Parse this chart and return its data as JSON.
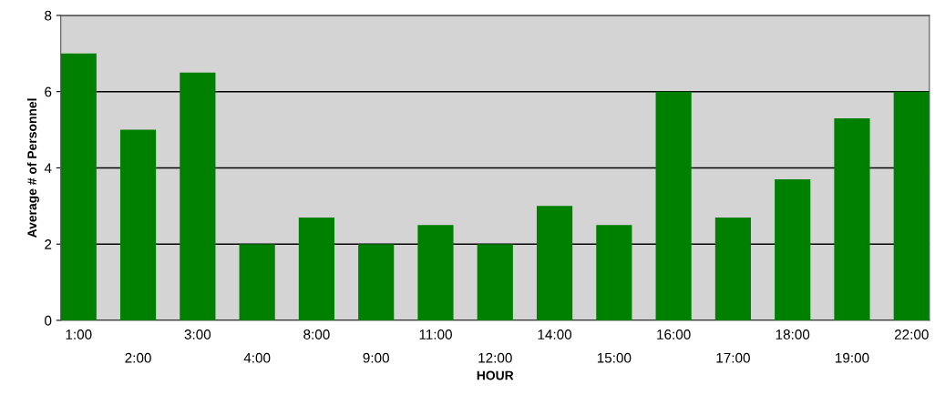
{
  "chart_data": {
    "type": "bar",
    "xlabel": "HOUR",
    "ylabel": "Average # of Personnel",
    "categories": [
      "1:00",
      "2:00",
      "3:00",
      "4:00",
      "8:00",
      "9:00",
      "11:00",
      "12:00",
      "14:00",
      "15:00",
      "16:00",
      "17:00",
      "18:00",
      "19:00",
      "22:00"
    ],
    "values": [
      7,
      5,
      6.5,
      2,
      2.7,
      2,
      2.5,
      2,
      3,
      2.5,
      6,
      2.7,
      3.7,
      5.3,
      6
    ],
    "color": "#008000",
    "ylim": [
      0,
      8
    ],
    "yticks": [
      0,
      2,
      4,
      6,
      8
    ],
    "grid": "y"
  }
}
